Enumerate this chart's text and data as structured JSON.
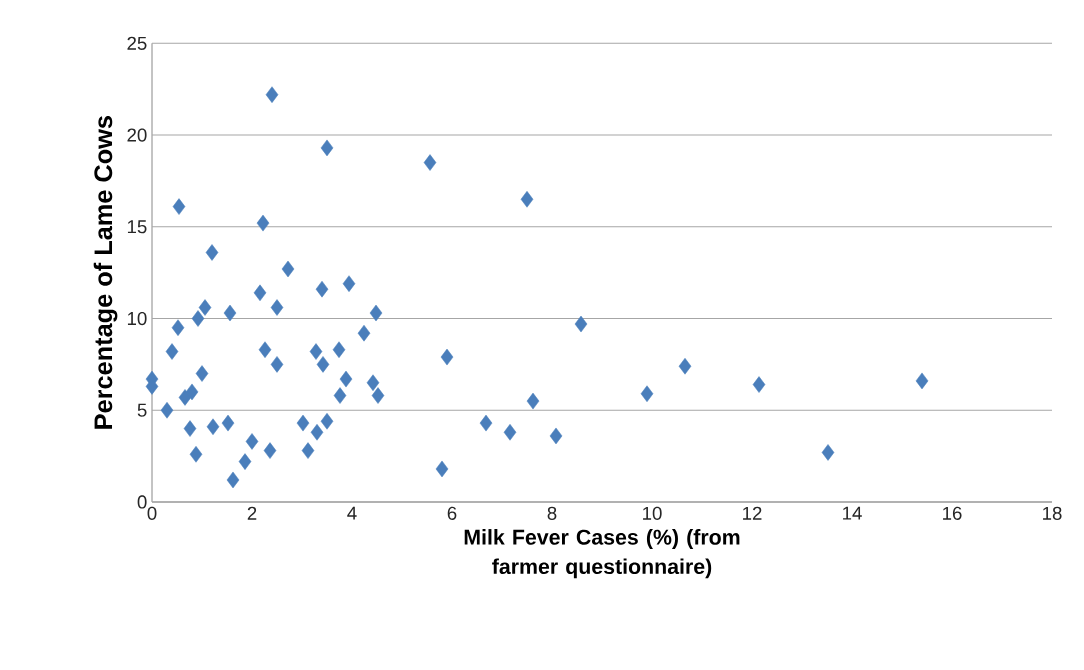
{
  "chart_data": {
    "type": "scatter",
    "xlabel": "Milk Fever Cases (%) (from farmer questionnaire)",
    "ylabel": "Percentage of Lame Cows",
    "x": [
      2.4,
      3.5,
      5.56,
      7.5,
      0.54,
      2.22,
      1.2,
      2.72,
      3.94,
      3.4,
      2.16,
      1.06,
      1.56,
      2.5,
      4.48,
      0.92,
      0.52,
      8.58,
      4.24,
      0.4,
      2.26,
      3.28,
      3.74,
      5.9,
      2.5,
      3.42,
      10.66,
      1.0,
      0,
      0,
      3.88,
      4.42,
      12.14,
      15.4,
      0.66,
      0.8,
      3.76,
      4.52,
      9.9,
      7.62,
      0.3,
      0.76,
      1.22,
      1.52,
      3.02,
      3.5,
      3.3,
      6.68,
      7.16,
      8.08,
      2.0,
      0.88,
      2.36,
      3.12,
      1.86,
      5.8,
      13.52,
      1.62
    ],
    "values": [
      22.2,
      19.3,
      18.5,
      16.5,
      16.1,
      15.2,
      13.6,
      12.7,
      11.9,
      11.6,
      11.4,
      10.6,
      10.3,
      10.6,
      10.3,
      10.0,
      9.5,
      9.7,
      9.2,
      8.2,
      8.3,
      8.2,
      8.3,
      7.9,
      7.5,
      7.5,
      7.4,
      7.0,
      6.7,
      6.3,
      6.7,
      6.5,
      6.4,
      6.6,
      5.7,
      6.0,
      5.8,
      5.8,
      5.9,
      5.5,
      5.0,
      4.0,
      4.1,
      4.3,
      4.3,
      4.4,
      3.8,
      4.3,
      3.8,
      3.6,
      3.3,
      2.6,
      2.8,
      2.8,
      2.2,
      1.8,
      2.7,
      1.2
    ],
    "color": "#4a7ebb",
    "marker": "diamond",
    "grid": "y",
    "xlim": [
      0,
      18
    ],
    "xticks": [
      0,
      2,
      4,
      6,
      8,
      10,
      12,
      14,
      16,
      18
    ],
    "ylim": [
      0,
      25
    ],
    "yticks": [
      0,
      5,
      10,
      15,
      20,
      25
    ]
  }
}
